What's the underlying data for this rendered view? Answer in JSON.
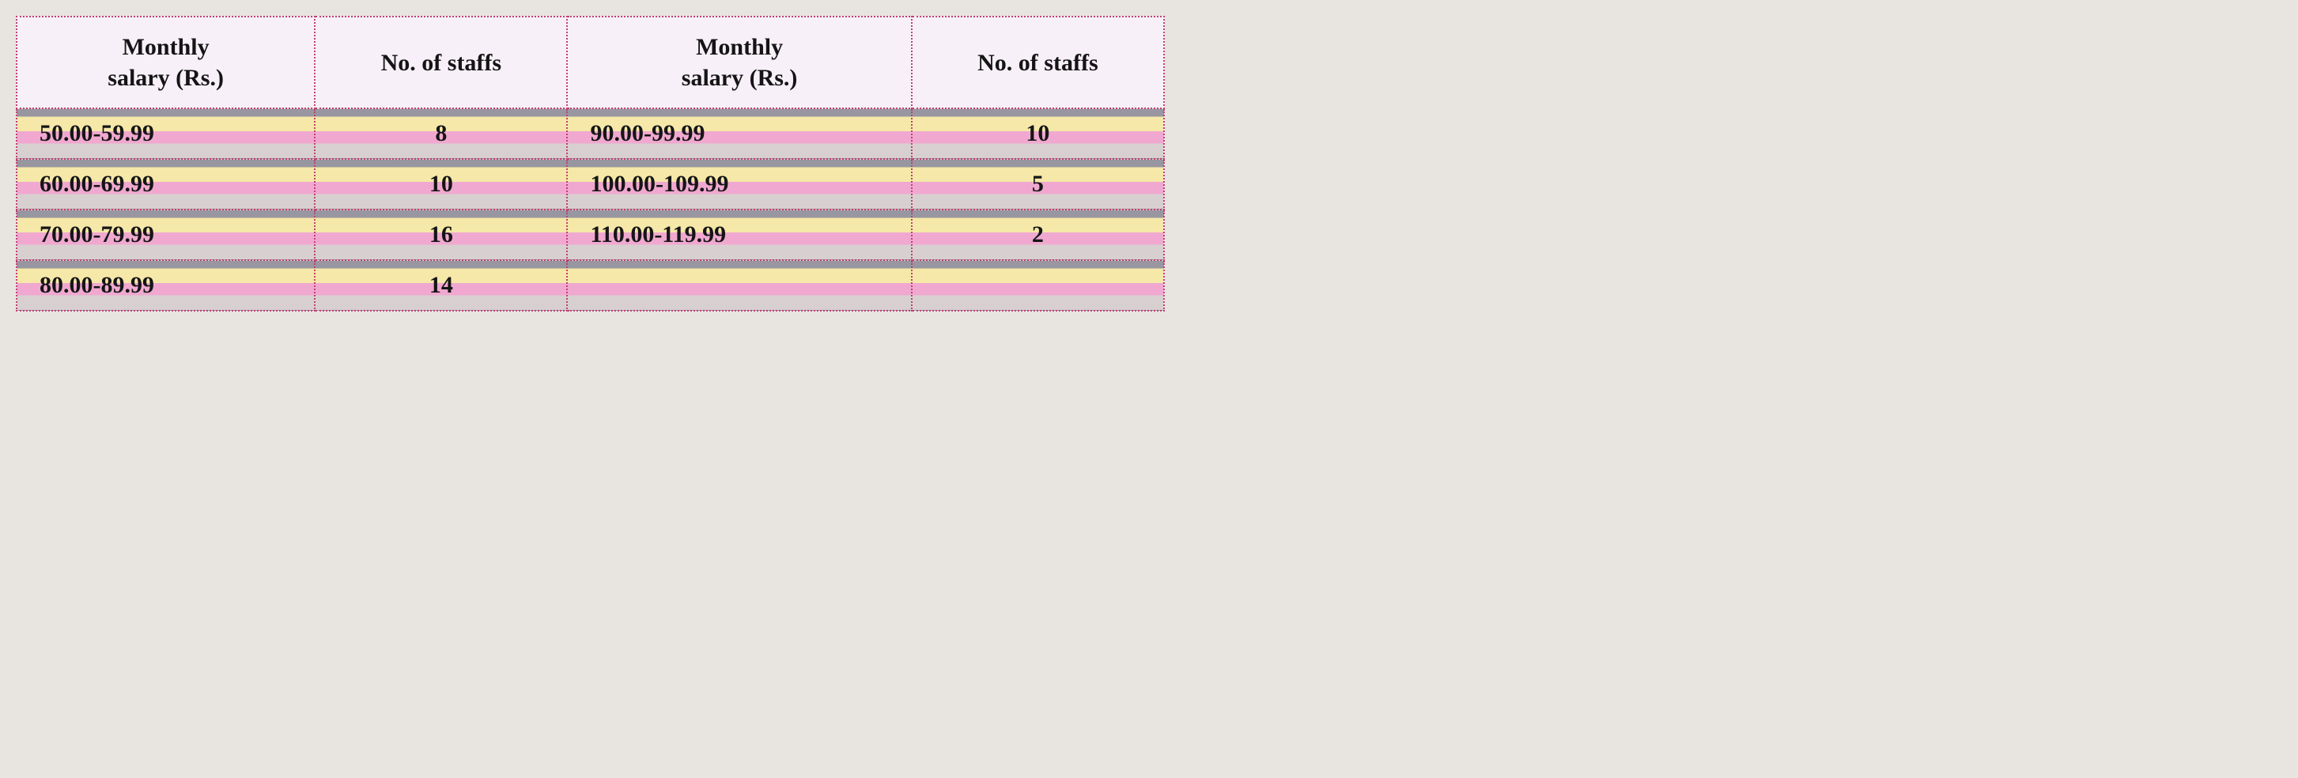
{
  "salary_table": {
    "type": "table",
    "columns": [
      {
        "key": "salary1",
        "header_lines": [
          "Monthly",
          "salary (Rs.)"
        ],
        "width": "26%",
        "align": "left"
      },
      {
        "key": "staff1",
        "header": "No. of staffs",
        "width": "22%",
        "align": "center"
      },
      {
        "key": "salary2",
        "header_lines": [
          "Monthly",
          "salary (Rs.)"
        ],
        "width": "30%",
        "align": "left"
      },
      {
        "key": "staff2",
        "header": "No. of staffs",
        "width": "22%",
        "align": "center"
      }
    ],
    "headers": {
      "salary1_line1": "Monthly",
      "salary1_line2": "salary (Rs.)",
      "staff1": "No. of staffs",
      "salary2_line1": "Monthly",
      "salary2_line2": "salary (Rs.)",
      "staff2": "No. of staffs"
    },
    "rows": [
      {
        "salary1": "50.00-59.99",
        "staff1": "8",
        "salary2": "90.00-99.99",
        "staff2": "10"
      },
      {
        "salary1": "60.00-69.99",
        "staff1": "10",
        "salary2": "100.00-109.99",
        "staff2": "5"
      },
      {
        "salary1": "70.00-79.99",
        "staff1": "16",
        "salary2": "110.00-119.99",
        "staff2": "2"
      },
      {
        "salary1": "80.00-89.99",
        "staff1": "14",
        "salary2": "",
        "staff2": ""
      }
    ],
    "colors": {
      "border_color": "#c04070",
      "header_bg": "#f8f0f8",
      "text_color": "#151515",
      "row_gradient_top": "#9896a0",
      "row_gradient_yellow": "#f5e8a8",
      "row_gradient_pink": "#f0a8d0",
      "row_gradient_bottom": "#d8d0d0",
      "body_bg": "#e8e4e0"
    },
    "typography": {
      "header_fontsize_pt": 22,
      "cell_fontsize_pt": 22,
      "font_weight": "bold",
      "font_family": "Times New Roman"
    }
  }
}
